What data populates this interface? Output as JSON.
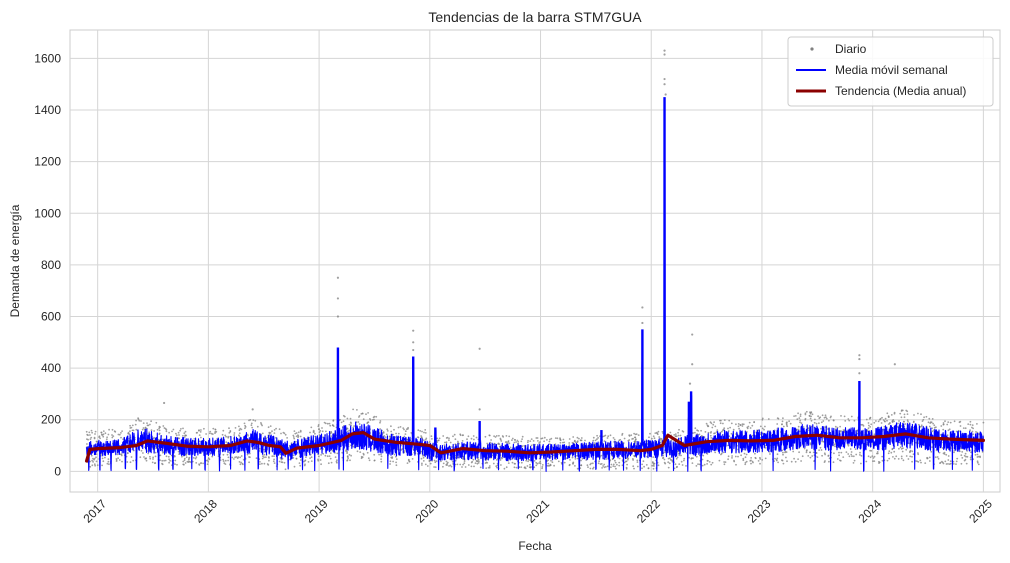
{
  "chart_data": {
    "type": "line",
    "title": "Tendencias de la barra STM7GUA",
    "xlabel": "Fecha",
    "ylabel": "Demanda de energía",
    "xlim": [
      2016.75,
      2025.15
    ],
    "ylim": [
      -80,
      1710
    ],
    "x_ticks": [
      "2017",
      "2018",
      "2019",
      "2020",
      "2021",
      "2022",
      "2023",
      "2024",
      "2025"
    ],
    "y_ticks": [
      0,
      200,
      400,
      600,
      800,
      1000,
      1200,
      1400,
      1600
    ],
    "grid": true,
    "legend_position": "top-right",
    "series": [
      {
        "name": "Diario",
        "style": "points",
        "color": "#808080",
        "band": [
          [
            2016.9,
            15,
            165
          ],
          [
            2017.0,
            20,
            160
          ],
          [
            2017.2,
            25,
            165
          ],
          [
            2017.4,
            40,
            215
          ],
          [
            2017.6,
            25,
            175
          ],
          [
            2017.8,
            20,
            165
          ],
          [
            2018.0,
            20,
            165
          ],
          [
            2018.2,
            20,
            170
          ],
          [
            2018.4,
            30,
            205
          ],
          [
            2018.6,
            20,
            175
          ],
          [
            2018.7,
            5,
            150
          ],
          [
            2018.9,
            20,
            170
          ],
          [
            2019.1,
            25,
            195
          ],
          [
            2019.35,
            50,
            250
          ],
          [
            2019.5,
            30,
            215
          ],
          [
            2019.7,
            20,
            175
          ],
          [
            2019.95,
            20,
            170
          ],
          [
            2020.0,
            15,
            140
          ],
          [
            2020.3,
            15,
            145
          ],
          [
            2020.6,
            10,
            140
          ],
          [
            2020.9,
            10,
            135
          ],
          [
            2021.2,
            10,
            130
          ],
          [
            2021.5,
            10,
            140
          ],
          [
            2021.9,
            10,
            150
          ],
          [
            2022.2,
            10,
            160
          ],
          [
            2022.4,
            20,
            180
          ],
          [
            2022.6,
            25,
            200
          ],
          [
            2022.9,
            25,
            200
          ],
          [
            2023.1,
            25,
            210
          ],
          [
            2023.4,
            40,
            235
          ],
          [
            2023.7,
            30,
            215
          ],
          [
            2024.0,
            30,
            215
          ],
          [
            2024.3,
            40,
            240
          ],
          [
            2024.6,
            25,
            200
          ],
          [
            2025.0,
            20,
            190
          ]
        ],
        "outliers": [
          [
            2019.17,
            750
          ],
          [
            2019.17,
            670
          ],
          [
            2019.17,
            600
          ],
          [
            2019.85,
            545
          ],
          [
            2019.85,
            500
          ],
          [
            2019.85,
            470
          ],
          [
            2020.45,
            475
          ],
          [
            2021.92,
            635
          ],
          [
            2021.92,
            575
          ],
          [
            2022.12,
            1630
          ],
          [
            2022.12,
            1615
          ],
          [
            2022.12,
            1520
          ],
          [
            2022.12,
            1500
          ],
          [
            2022.13,
            1460
          ],
          [
            2022.37,
            530
          ],
          [
            2022.37,
            415
          ],
          [
            2022.35,
            340
          ],
          [
            2023.88,
            450
          ],
          [
            2023.88,
            435
          ],
          [
            2023.88,
            380
          ],
          [
            2024.2,
            415
          ],
          [
            2017.6,
            265
          ],
          [
            2018.4,
            240
          ],
          [
            2020.45,
            240
          ]
        ]
      },
      {
        "name": "Media móvil semanal",
        "style": "line",
        "color": "#0000ff",
        "band": [
          [
            2016.9,
            55,
            120
          ],
          [
            2017.0,
            60,
            120
          ],
          [
            2017.2,
            60,
            125
          ],
          [
            2017.4,
            75,
            170
          ],
          [
            2017.6,
            65,
            140
          ],
          [
            2017.8,
            60,
            130
          ],
          [
            2018.0,
            60,
            130
          ],
          [
            2018.2,
            65,
            135
          ],
          [
            2018.4,
            70,
            165
          ],
          [
            2018.6,
            60,
            140
          ],
          [
            2018.7,
            40,
            120
          ],
          [
            2018.9,
            60,
            135
          ],
          [
            2019.1,
            70,
            155
          ],
          [
            2019.35,
            85,
            195
          ],
          [
            2019.5,
            70,
            170
          ],
          [
            2019.7,
            60,
            140
          ],
          [
            2019.95,
            60,
            135
          ],
          [
            2020.0,
            40,
            110
          ],
          [
            2020.3,
            45,
            115
          ],
          [
            2020.6,
            40,
            110
          ],
          [
            2020.9,
            40,
            105
          ],
          [
            2021.2,
            45,
            105
          ],
          [
            2021.5,
            45,
            115
          ],
          [
            2021.9,
            50,
            120
          ],
          [
            2022.2,
            55,
            130
          ],
          [
            2022.4,
            60,
            145
          ],
          [
            2022.6,
            70,
            160
          ],
          [
            2022.9,
            70,
            160
          ],
          [
            2023.1,
            75,
            165
          ],
          [
            2023.4,
            85,
            185
          ],
          [
            2023.7,
            80,
            170
          ],
          [
            2024.0,
            80,
            170
          ],
          [
            2024.3,
            90,
            195
          ],
          [
            2024.6,
            75,
            160
          ],
          [
            2025.0,
            70,
            155
          ]
        ],
        "spikes": [
          [
            2019.17,
            480
          ],
          [
            2019.85,
            445
          ],
          [
            2020.45,
            195
          ],
          [
            2021.92,
            550
          ],
          [
            2022.12,
            1450
          ],
          [
            2022.36,
            310
          ],
          [
            2022.34,
            270
          ],
          [
            2023.88,
            350
          ],
          [
            2021.55,
            160
          ],
          [
            2020.05,
            170
          ]
        ],
        "dips": [
          2016.92,
          2017.02,
          2017.12,
          2017.25,
          2017.35,
          2017.55,
          2017.68,
          2017.85,
          2017.97,
          2018.1,
          2018.2,
          2018.33,
          2018.45,
          2018.62,
          2018.72,
          2018.85,
          2018.96,
          2019.18,
          2019.22,
          2019.62,
          2019.9,
          2020.08,
          2020.22,
          2020.48,
          2020.62,
          2020.8,
          2020.93,
          2021.05,
          2021.2,
          2021.35,
          2021.5,
          2021.62,
          2021.75,
          2021.9,
          2022.05,
          2022.2,
          2022.33,
          2022.45,
          2023.1,
          2023.48,
          2023.62,
          2023.92,
          2024.1,
          2024.38,
          2024.55,
          2024.72,
          2024.9
        ]
      },
      {
        "name": "Tendencia (Media anual)",
        "style": "line",
        "color": "#8b0000",
        "x": [
          2016.9,
          2016.93,
          2017.0,
          2017.2,
          2017.35,
          2017.45,
          2017.6,
          2017.8,
          2018.0,
          2018.2,
          2018.35,
          2018.45,
          2018.55,
          2018.65,
          2018.7,
          2018.8,
          2019.0,
          2019.1,
          2019.2,
          2019.3,
          2019.4,
          2019.5,
          2019.7,
          2019.9,
          2020.0,
          2020.1,
          2020.3,
          2020.5,
          2020.7,
          2020.9,
          2021.1,
          2021.3,
          2021.5,
          2021.7,
          2021.9,
          2022.0,
          2022.1,
          2022.15,
          2022.3,
          2022.5,
          2022.7,
          2022.9,
          2023.1,
          2023.3,
          2023.5,
          2023.7,
          2023.9,
          2024.1,
          2024.3,
          2024.5,
          2024.7,
          2025.0
        ],
        "y": [
          40,
          85,
          88,
          92,
          100,
          118,
          110,
          98,
          95,
          100,
          118,
          112,
          100,
          95,
          70,
          90,
          100,
          110,
          120,
          145,
          150,
          125,
          112,
          105,
          100,
          72,
          88,
          80,
          78,
          72,
          75,
          80,
          85,
          85,
          80,
          85,
          100,
          140,
          100,
          115,
          120,
          118,
          120,
          135,
          140,
          130,
          130,
          135,
          145,
          130,
          125,
          120
        ]
      }
    ]
  }
}
